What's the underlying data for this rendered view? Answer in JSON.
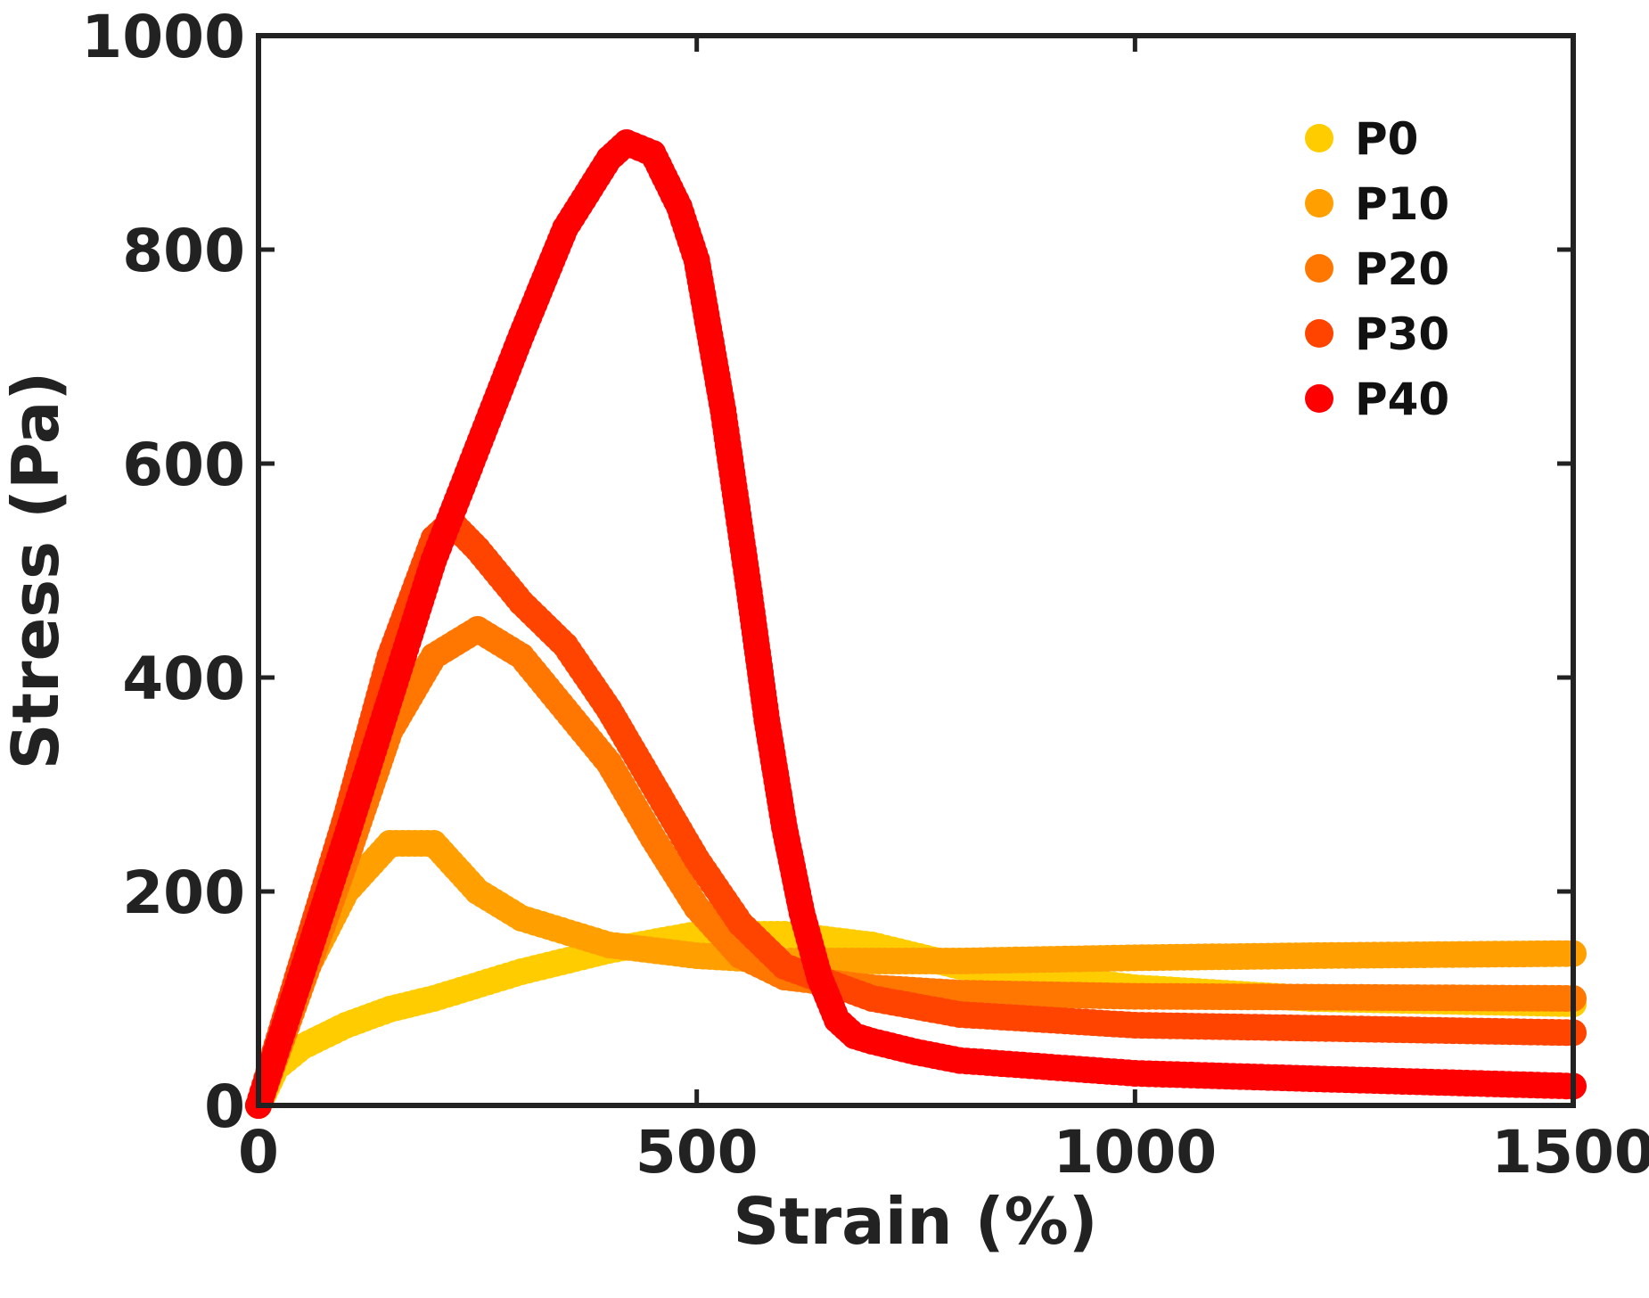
{
  "chart_data": {
    "type": "scatter",
    "title": "",
    "xlabel": "Strain (%)",
    "ylabel": "Stress (Pa)",
    "xlim": [
      0,
      1500
    ],
    "ylim": [
      0,
      1000
    ],
    "xticks": [
      0,
      500,
      1000,
      1500
    ],
    "xtick_labels": [
      "0",
      "500",
      "1000",
      "1500"
    ],
    "yticks": [
      0,
      200,
      400,
      600,
      800,
      1000
    ],
    "ytick_labels": [
      "0",
      "200",
      "400",
      "600",
      "800",
      "1000"
    ],
    "grid": false,
    "legend_position": "top-right",
    "series": [
      {
        "name": "P0",
        "color": "#FFCC00",
        "x": [
          0,
          20,
          50,
          100,
          150,
          200,
          300,
          400,
          500,
          600,
          700,
          800,
          1000,
          1200,
          1500
        ],
        "y": [
          0,
          35,
          55,
          75,
          90,
          100,
          125,
          145,
          160,
          160,
          150,
          130,
          110,
          100,
          95
        ]
      },
      {
        "name": "P10",
        "color": "#FFA000",
        "x": [
          0,
          50,
          100,
          150,
          200,
          250,
          300,
          400,
          500,
          600,
          700,
          800,
          1000,
          1200,
          1500
        ],
        "y": [
          0,
          120,
          200,
          245,
          245,
          200,
          175,
          150,
          140,
          135,
          135,
          135,
          138,
          140,
          142
        ]
      },
      {
        "name": "P20",
        "color": "#FF7700",
        "x": [
          0,
          100,
          150,
          200,
          250,
          300,
          400,
          450,
          500,
          550,
          600,
          700,
          800,
          1000,
          1500
        ],
        "y": [
          0,
          230,
          350,
          420,
          445,
          420,
          320,
          250,
          185,
          140,
          120,
          110,
          105,
          102,
          100
        ]
      },
      {
        "name": "P30",
        "color": "#FF4400",
        "x": [
          0,
          100,
          150,
          200,
          220,
          250,
          300,
          350,
          400,
          450,
          500,
          550,
          600,
          700,
          800,
          1000,
          1500
        ],
        "y": [
          0,
          270,
          420,
          530,
          545,
          520,
          470,
          430,
          370,
          300,
          230,
          170,
          130,
          100,
          85,
          75,
          68
        ]
      },
      {
        "name": "P40",
        "color": "#FF0000",
        "x": [
          0,
          100,
          200,
          300,
          350,
          400,
          420,
          450,
          480,
          500,
          530,
          560,
          580,
          600,
          620,
          640,
          660,
          680,
          700,
          750,
          800,
          1000,
          1200,
          1500
        ],
        "y": [
          0,
          250,
          510,
          720,
          820,
          885,
          900,
          890,
          840,
          790,
          650,
          480,
          360,
          260,
          180,
          120,
          80,
          65,
          60,
          50,
          42,
          30,
          25,
          18
        ]
      }
    ]
  }
}
